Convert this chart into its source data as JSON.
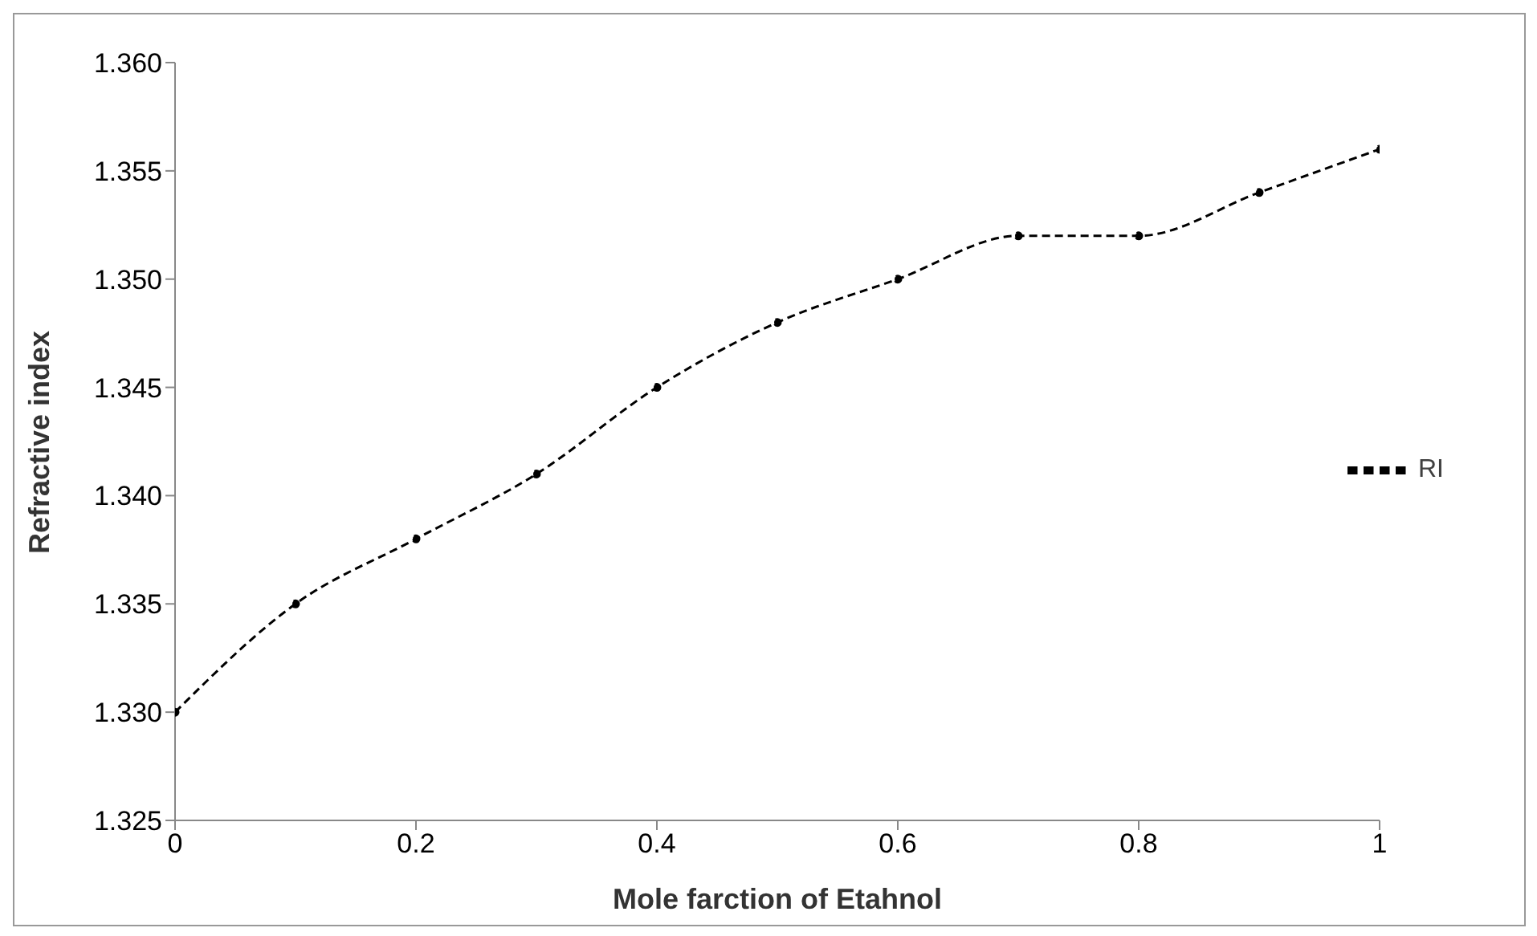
{
  "chart_data": {
    "type": "line",
    "xlabel": "Mole farction of Etahnol",
    "ylabel": "Refractive index",
    "x": [
      0,
      0.1,
      0.2,
      0.3,
      0.4,
      0.5,
      0.6,
      0.7,
      0.8,
      0.9,
      1
    ],
    "series": [
      {
        "name": "RI",
        "color": "#000000",
        "values": [
          1.33,
          1.335,
          1.338,
          1.341,
          1.345,
          1.348,
          1.35,
          1.352,
          1.352,
          1.354,
          1.356
        ]
      }
    ],
    "xlim": [
      0,
      1
    ],
    "xticks": [
      0,
      0.2,
      0.4,
      0.6,
      0.8,
      1
    ],
    "ylim": [
      1.325,
      1.36
    ],
    "yticks": [
      {
        "value": 1.325,
        "label": "1.325"
      },
      {
        "value": 1.33,
        "label": "1.330"
      },
      {
        "value": 1.335,
        "label": "1.335"
      },
      {
        "value": 1.34,
        "label": "1.340"
      },
      {
        "value": 1.345,
        "label": "1.345"
      },
      {
        "value": 1.35,
        "label": "1.350"
      },
      {
        "value": 1.355,
        "label": "1.355"
      },
      {
        "value": 1.36,
        "label": "1.360"
      }
    ],
    "grid": false,
    "legend": "right",
    "marker": "circle",
    "line_style": "dashed"
  }
}
